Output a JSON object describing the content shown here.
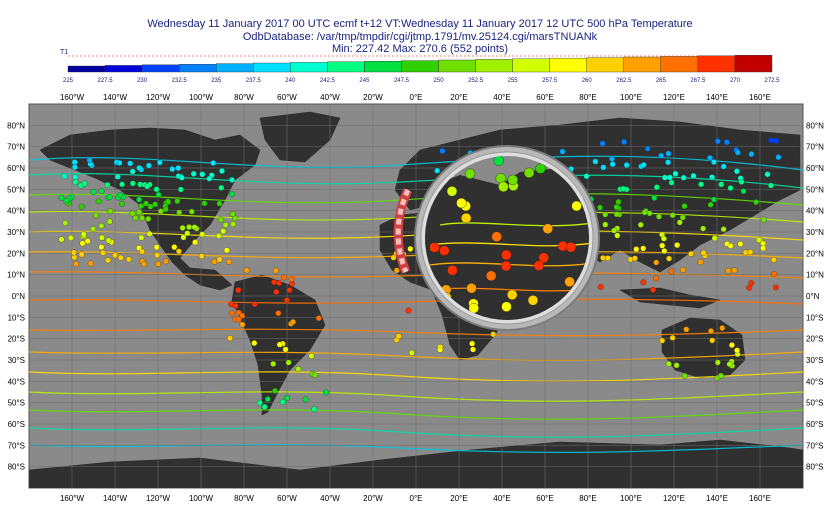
{
  "title": {
    "line1": "Wednesday 11 January 2017 00 UTC ecmf t+12 VT:Wednesday 11 January 2017 12 UTC 500 hPa  Temperature",
    "line2": "OdbDatabase: /var/tmp/tmpdir/cgi/jtmp.1791/mv.25124.cgi/marsTNUANk",
    "line3": "Min: 227.42 Max: 270.6 (552 points)"
  },
  "legend": {
    "label": "T1",
    "ticks": [
      "225",
      "227.5",
      "230",
      "232.5",
      "235",
      "237.5",
      "240",
      "242.5",
      "245",
      "247.5",
      "250",
      "252.5",
      "255",
      "257.5",
      "260",
      "262.5",
      "265",
      "267.5",
      "270",
      "272.5"
    ],
    "colors": [
      "#0000a0",
      "#0000d8",
      "#0040ff",
      "#0080ff",
      "#00b0ff",
      "#00e0ff",
      "#00ffd0",
      "#00ff80",
      "#00e040",
      "#30d000",
      "#70e000",
      "#a0f000",
      "#d0ff00",
      "#ffff00",
      "#ffd000",
      "#ffa000",
      "#ff7000",
      "#ff3000",
      "#c00000"
    ]
  },
  "map": {
    "lon_labels": [
      "160°W",
      "140°W",
      "120°W",
      "100°W",
      "80°W",
      "60°W",
      "40°W",
      "20°W",
      "0°E",
      "20°E",
      "40°E",
      "60°E",
      "80°E",
      "100°E",
      "120°E",
      "140°E",
      "160°E"
    ],
    "lat_labels": [
      "80°N",
      "70°N",
      "60°N",
      "50°N",
      "40°N",
      "30°N",
      "20°N",
      "10°N",
      "0°N",
      "10°S",
      "20°S",
      "30°S",
      "40°S",
      "50°S",
      "60°S",
      "70°S",
      "80°S"
    ],
    "colors": {
      "ocean": "#8a8a8a",
      "land": "#303030",
      "grid": "#6e6e6e"
    }
  }
}
